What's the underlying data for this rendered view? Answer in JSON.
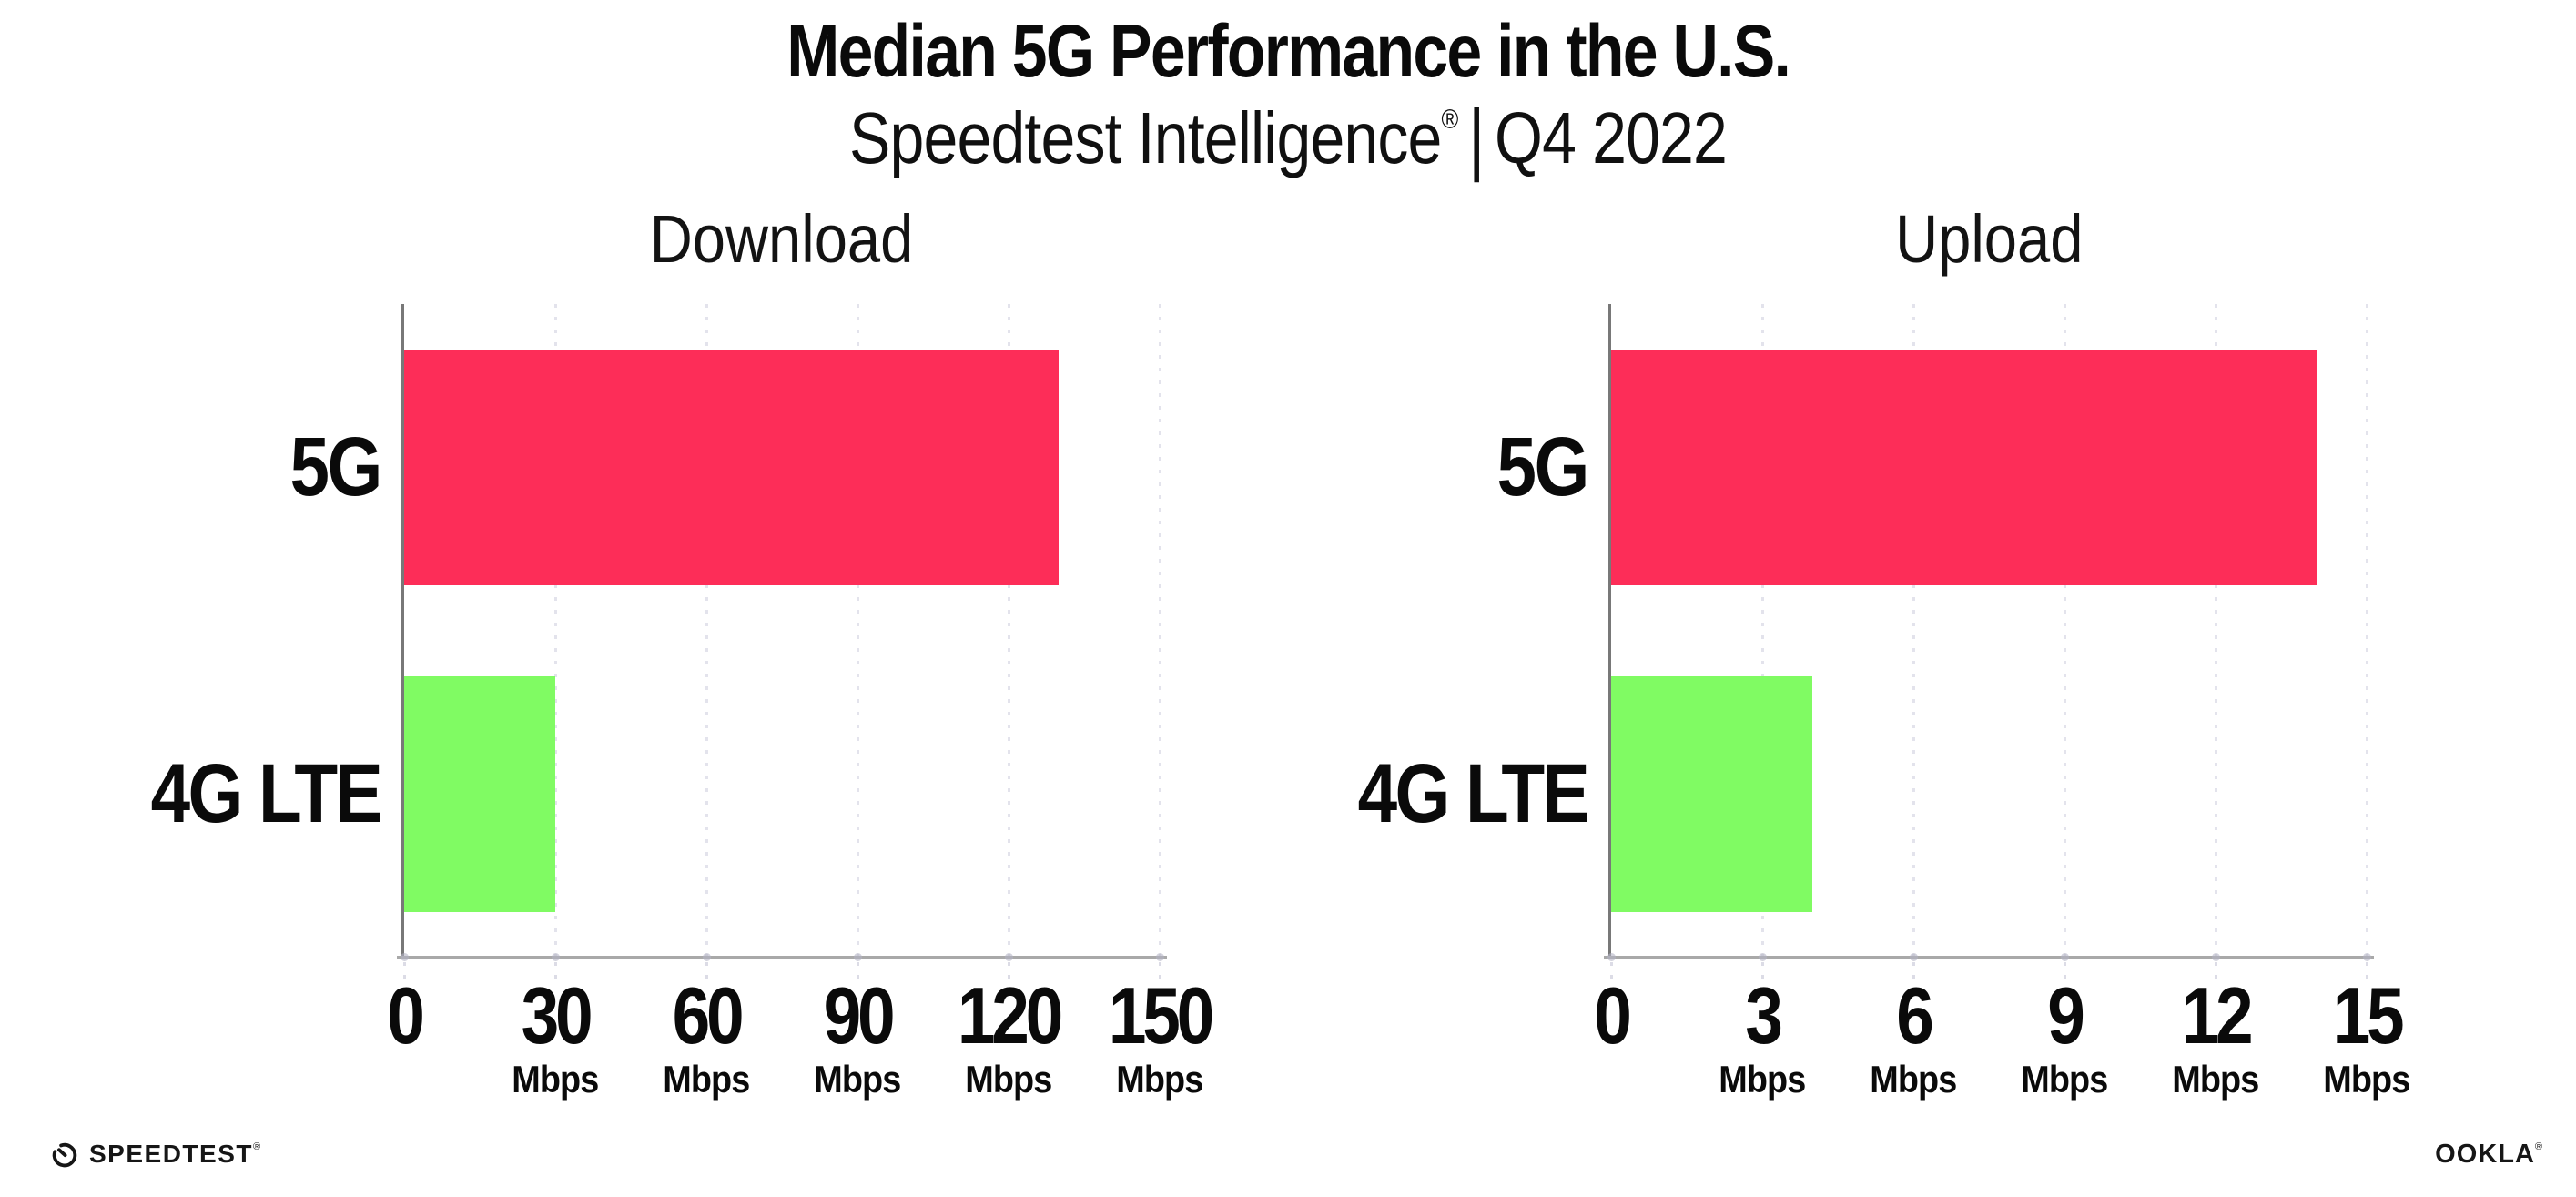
{
  "page": {
    "background": "#ffffff"
  },
  "header": {
    "title": "Median 5G Performance in the U.S.",
    "subtitle": {
      "brand": "Speedtest Intelligence",
      "registered_mark": "®",
      "separator": "|",
      "period": "Q4 2022"
    }
  },
  "chart_data": [
    {
      "type": "bar",
      "orientation": "horizontal",
      "title": "Download",
      "categories": [
        "5G",
        "4G LTE"
      ],
      "values": [
        130,
        30
      ],
      "unit": "Mbps",
      "xlim": [
        0,
        150
      ],
      "xticks": [
        0,
        30,
        60,
        90,
        120,
        150
      ],
      "xtick_labels": [
        "0",
        "30",
        "60",
        "90",
        "120",
        "150"
      ],
      "xtick_units": [
        "",
        "Mbps",
        "Mbps",
        "Mbps",
        "Mbps",
        "Mbps"
      ],
      "bar_colors": [
        "#FD2D58",
        "#80FB63"
      ],
      "grid": "vertical-dotted",
      "legend": "none"
    },
    {
      "type": "bar",
      "orientation": "horizontal",
      "title": "Upload",
      "categories": [
        "5G",
        "4G LTE"
      ],
      "values": [
        14,
        4
      ],
      "unit": "Mbps",
      "xlim": [
        0,
        15
      ],
      "xticks": [
        0,
        3,
        6,
        9,
        12,
        15
      ],
      "xtick_labels": [
        "0",
        "3",
        "6",
        "9",
        "12",
        "15"
      ],
      "xtick_units": [
        "",
        "Mbps",
        "Mbps",
        "Mbps",
        "Mbps",
        "Mbps"
      ],
      "bar_colors": [
        "#FD2D58",
        "#80FB63"
      ],
      "grid": "vertical-dotted",
      "legend": "none"
    }
  ],
  "footer": {
    "speedtest": {
      "label": "SPEEDTEST",
      "mark": "®",
      "icon": "speedtest-gauge-icon"
    },
    "ookla": {
      "label": "OOKLA",
      "mark": "®"
    }
  },
  "colors": {
    "bar_5g": "#FD2D58",
    "bar_4g_lte": "#80FB63",
    "gridline": "#E3E3EC",
    "y_axis": "#787878",
    "x_axis": "#A9A9A9",
    "text": "#0A0A0A"
  }
}
